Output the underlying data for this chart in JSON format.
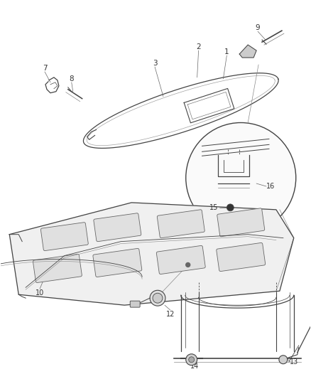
{
  "bg_color": "#ffffff",
  "fig_width": 4.38,
  "fig_height": 5.33,
  "dpi": 100,
  "line_color": "#444444",
  "label_color": "#333333"
}
